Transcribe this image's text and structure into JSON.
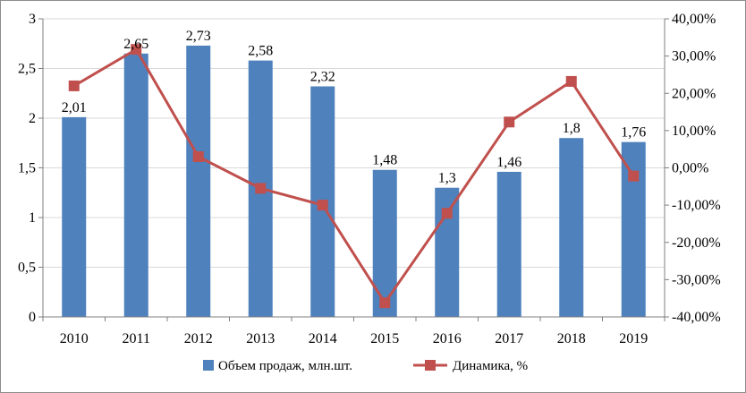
{
  "chart_data": {
    "type": "bar+line",
    "categories": [
      "2010",
      "2011",
      "2012",
      "2013",
      "2014",
      "2015",
      "2016",
      "2017",
      "2018",
      "2019"
    ],
    "series": [
      {
        "name": "Объем продаж, млн.шт.",
        "type": "bar",
        "axis": "left",
        "color": "#4f81bd",
        "values": [
          2.01,
          2.65,
          2.73,
          2.58,
          2.32,
          1.48,
          1.3,
          1.46,
          1.8,
          1.76
        ],
        "labels": [
          "2,01",
          "2,65",
          "2,73",
          "2,58",
          "2,32",
          "1,48",
          "1,3",
          "1,46",
          "1,8",
          "1,76"
        ]
      },
      {
        "name": "Динамика, %",
        "type": "line",
        "axis": "right",
        "color": "#c0504d",
        "values": [
          22.0,
          31.8,
          3.0,
          -5.5,
          -10.0,
          -36.2,
          -12.2,
          12.3,
          23.2,
          -2.2
        ]
      }
    ],
    "y_left": {
      "min": 0,
      "max": 3,
      "ticks": [
        "0",
        "0,5",
        "1",
        "1,5",
        "2",
        "2,5",
        "3"
      ]
    },
    "y_right": {
      "min": -40,
      "max": 40,
      "ticks": [
        "-40,00%",
        "-30,00%",
        "-20,00%",
        "-10,00%",
        "0,00%",
        "10,00%",
        "20,00%",
        "30,00%",
        "40,00%"
      ]
    },
    "legend_position": "bottom",
    "grid": true
  }
}
